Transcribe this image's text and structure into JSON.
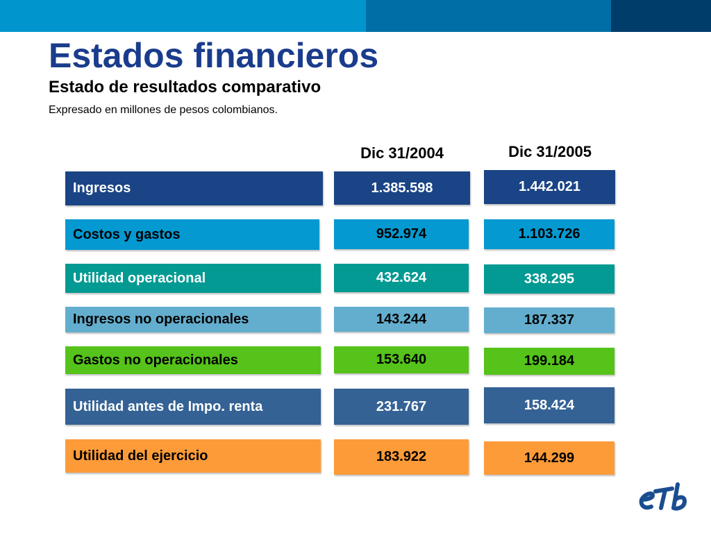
{
  "slide": {
    "title": "Estados financieros",
    "subtitle": "Estado de resultados comparativo",
    "note": "Expresado en millones de pesos colombianos."
  },
  "columns": [
    "Dic 31/2004",
    "Dic 31/2005"
  ],
  "rows": [
    {
      "label": "Ingresos",
      "v2004": "1.385.598",
      "v2005": "1.442.021",
      "color": "#1a4485",
      "text_color": "#ffffff"
    },
    {
      "label": "Costos y gastos",
      "v2004": "952.974",
      "v2005": "1.103.726",
      "color": "#0599d1",
      "text_color": "#000000"
    },
    {
      "label": "Utilidad operacional",
      "v2004": "432.624",
      "v2005": "338.295",
      "color": "#029a92",
      "text_color": "#ffffff"
    },
    {
      "label": "Ingresos no operacionales",
      "v2004": "143.244",
      "v2005": "187.337",
      "color": "#63aece",
      "text_color": "#000000"
    },
    {
      "label": "Gastos no operacionales",
      "v2004": "153.640",
      "v2005": "199.184",
      "color": "#55c31a",
      "text_color": "#000000"
    },
    {
      "label": "Utilidad antes de Impo. renta",
      "v2004": "231.767",
      "v2005": "158.424",
      "color": "#346294",
      "text_color": "#ffffff"
    },
    {
      "label": "Utilidad del ejercicio",
      "v2004": "183.922",
      "v2005": "144.299",
      "color": "#fe9b39",
      "text_color": "#000000"
    }
  ],
  "logo": {
    "name": "etb-logo",
    "color": "#1a4d8f"
  }
}
